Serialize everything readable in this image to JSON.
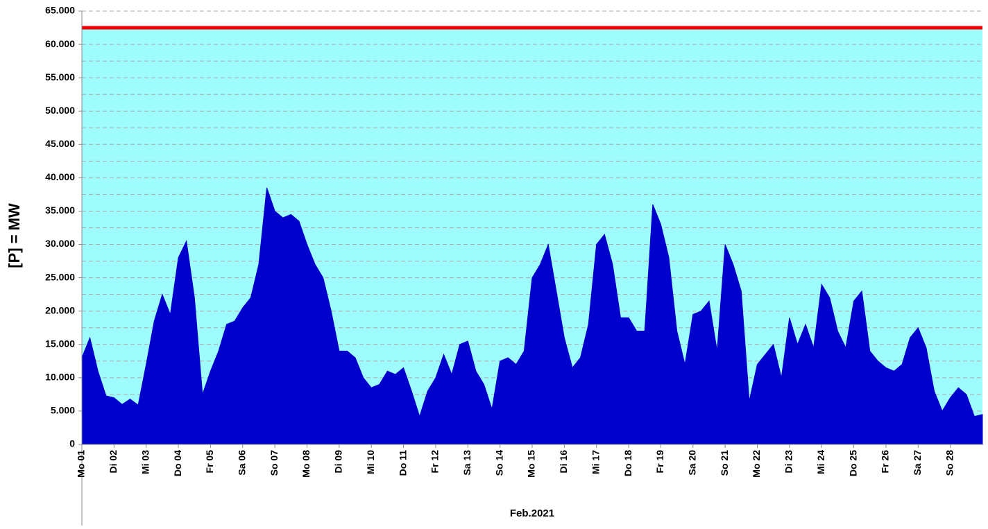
{
  "chart_data": {
    "type": "area",
    "x_label": "Feb.2021",
    "y_label": "[P] = MW",
    "xlim": [
      0,
      28
    ],
    "ylim": [
      0,
      65000
    ],
    "xticks": [
      {
        "value": 0,
        "label": "Mo 01"
      },
      {
        "value": 1,
        "label": "Di 02"
      },
      {
        "value": 2,
        "label": "Mi 03"
      },
      {
        "value": 3,
        "label": "Do 04"
      },
      {
        "value": 4,
        "label": "Fr 05"
      },
      {
        "value": 5,
        "label": "Sa 06"
      },
      {
        "value": 6,
        "label": "So 07"
      },
      {
        "value": 7,
        "label": "Mo 08"
      },
      {
        "value": 8,
        "label": "Di 09"
      },
      {
        "value": 9,
        "label": "Mi 10"
      },
      {
        "value": 10,
        "label": "Do 11"
      },
      {
        "value": 11,
        "label": "Fr 12"
      },
      {
        "value": 12,
        "label": "Sa 13"
      },
      {
        "value": 13,
        "label": "So 14"
      },
      {
        "value": 14,
        "label": "Mo 15"
      },
      {
        "value": 15,
        "label": "Di 16"
      },
      {
        "value": 16,
        "label": "Mi 17"
      },
      {
        "value": 17,
        "label": "Do 18"
      },
      {
        "value": 18,
        "label": "Fr 19"
      },
      {
        "value": 19,
        "label": "Sa 20"
      },
      {
        "value": 20,
        "label": "So 21"
      },
      {
        "value": 21,
        "label": "Mo 22"
      },
      {
        "value": 22,
        "label": "Di 23"
      },
      {
        "value": 23,
        "label": "Mi 24"
      },
      {
        "value": 24,
        "label": "Do 25"
      },
      {
        "value": 25,
        "label": "Fr 26"
      },
      {
        "value": 26,
        "label": "Sa 27"
      },
      {
        "value": 27,
        "label": "So 28"
      }
    ],
    "yticks": [
      0,
      {
        "value": 5000,
        "label": "5.000"
      },
      {
        "value": 10000,
        "label": "10.000"
      },
      {
        "value": 15000,
        "label": "15.000"
      },
      {
        "value": 20000,
        "label": "20.000"
      },
      {
        "value": 25000,
        "label": "25.000"
      },
      {
        "value": 30000,
        "label": "30.000"
      },
      {
        "value": 35000,
        "label": "35.000"
      },
      {
        "value": 40000,
        "label": "40.000"
      },
      {
        "value": 45000,
        "label": "45.000"
      },
      {
        "value": 50000,
        "label": "50.000"
      },
      {
        "value": 55000,
        "label": "55.000"
      },
      {
        "value": 60000,
        "label": "60.000"
      },
      {
        "value": 65000,
        "label": "65.000"
      }
    ],
    "y_minor_ticks": [
      2500,
      7500,
      12500,
      17500,
      22500,
      27500,
      32500,
      37500,
      42500,
      47500,
      52500,
      57500,
      62500
    ],
    "grid": true,
    "capacity": {
      "value": 62500,
      "color": "#ee0000",
      "fill": "#9ffcfc"
    },
    "series": [
      {
        "color": "#0000cc",
        "x": [
          0,
          0.25,
          0.5,
          0.75,
          1,
          1.25,
          1.5,
          1.75,
          2,
          2.25,
          2.5,
          2.75,
          3,
          3.25,
          3.5,
          3.75,
          4,
          4.25,
          4.5,
          4.75,
          5,
          5.25,
          5.5,
          5.75,
          6,
          6.25,
          6.5,
          6.75,
          7,
          7.25,
          7.5,
          7.75,
          8,
          8.25,
          8.5,
          8.75,
          9,
          9.25,
          9.5,
          9.75,
          10,
          10.25,
          10.5,
          10.75,
          11,
          11.25,
          11.5,
          11.75,
          12,
          12.25,
          12.5,
          12.75,
          13,
          13.25,
          13.5,
          13.75,
          14,
          14.25,
          14.5,
          14.75,
          15,
          15.25,
          15.5,
          15.75,
          16,
          16.25,
          16.5,
          16.75,
          17,
          17.25,
          17.5,
          17.75,
          18,
          18.25,
          18.5,
          18.75,
          19,
          19.25,
          19.5,
          19.75,
          20,
          20.25,
          20.5,
          20.75,
          21,
          21.25,
          21.5,
          21.75,
          22,
          22.25,
          22.5,
          22.75,
          23,
          23.25,
          23.5,
          23.75,
          24,
          24.25,
          24.5,
          24.75,
          25,
          25.25,
          25.5,
          25.75,
          26,
          26.25,
          26.5,
          26.75,
          27,
          27.25,
          27.5,
          27.75,
          28
        ],
        "values": [
          13000,
          16000,
          11000,
          7300,
          7000,
          6000,
          6800,
          5900,
          12000,
          18500,
          22500,
          19500,
          28000,
          30500,
          22000,
          7500,
          11000,
          14000,
          18000,
          18500,
          20500,
          22000,
          27000,
          38500,
          35000,
          34000,
          34500,
          33500,
          30000,
          27000,
          25000,
          20000,
          14000,
          14000,
          13000,
          10000,
          8500,
          9000,
          11000,
          10500,
          11500,
          8000,
          4200,
          8000,
          10000,
          13500,
          10500,
          15000,
          15500,
          11000,
          9000,
          5300,
          12500,
          13000,
          12000,
          14000,
          25000,
          27000,
          30000,
          23000,
          16000,
          11500,
          13000,
          18000,
          30000,
          31500,
          27000,
          19000,
          19000,
          17000,
          17000,
          36000,
          33000,
          28000,
          17000,
          12000,
          19500,
          20000,
          21500,
          14000,
          30000,
          27000,
          23000,
          6500,
          12000,
          13500,
          15000,
          10000,
          19000,
          15000,
          18000,
          14500,
          24000,
          22000,
          17000,
          14500,
          21500,
          23000,
          14000,
          12500,
          11500,
          11000,
          12000,
          16000,
          17500,
          14500,
          8000,
          5000,
          7000,
          8500,
          7500,
          4200,
          4500
        ]
      }
    ]
  }
}
